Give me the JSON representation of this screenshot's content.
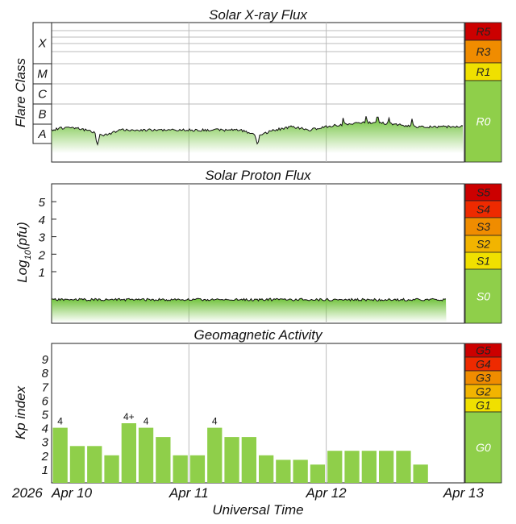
{
  "chart_data": [
    {
      "type": "area",
      "title": "Solar X-ray Flux",
      "ylabel": "Flare Class",
      "y_scale": "log",
      "class_ticks": [
        "A",
        "B",
        "C",
        "M",
        "X"
      ],
      "x": [
        "Apr 10 00:00",
        "Apr 10 03:00",
        "Apr 10 06:00",
        "Apr 10 09:00",
        "Apr 10 12:00",
        "Apr 10 15:00",
        "Apr 10 18:00",
        "Apr 10 21:00",
        "Apr 11 00:00",
        "Apr 11 03:00",
        "Apr 11 06:00",
        "Apr 11 09:00",
        "Apr 11 12:00",
        "Apr 11 15:00",
        "Apr 11 18:00",
        "Apr 11 21:00",
        "Apr 12 00:00",
        "Apr 12 03:00",
        "Apr 12 06:00",
        "Apr 12 09:00",
        "Apr 12 12:00",
        "Apr 12 15:00",
        "Apr 12 18:00",
        "Apr 12 21:00",
        "Apr 13 00:00"
      ],
      "values": [
        "B2",
        "B3",
        "B2",
        "B1",
        "B2",
        "B2",
        "B2",
        "B2",
        "B2",
        "B2",
        "B2",
        "B2",
        "B1",
        "B2",
        "B3",
        "B2",
        "B3",
        "B4",
        "B5",
        "B5",
        "B4",
        "B3",
        "B3",
        "B3",
        "B3"
      ],
      "peaks": [
        [
          "Apr 12 03:00",
          "B9"
        ],
        [
          "Apr 12 07:00",
          "C1.1"
        ],
        [
          "Apr 12 09:00",
          "C1.0"
        ],
        [
          "Apr 12 11:00",
          "B9"
        ],
        [
          "Apr 12 15:00",
          "B8"
        ]
      ],
      "dips": [
        [
          "Apr 10 08:00",
          "A3"
        ],
        [
          "Apr 11 12:00",
          "A3"
        ]
      ],
      "scale": {
        "labels": [
          "R5",
          "R3",
          "R1",
          "R0"
        ],
        "colors": [
          "#cc0000",
          "#f08c00",
          "#f0e000",
          "#8fcf4a"
        ]
      }
    },
    {
      "type": "area",
      "title": "Solar Proton Flux",
      "ylabel": "Log10(pfu)",
      "ylim": [
        -1.5,
        6
      ],
      "y_ticks": [
        1,
        2,
        3,
        4,
        5
      ],
      "x": [
        "Apr 10 00:00",
        "Apr 11 00:00",
        "Apr 12 00:00",
        "Apr 12 21:00"
      ],
      "values": [
        -0.6,
        -0.6,
        -0.6,
        -0.6
      ],
      "scale": {
        "labels": [
          "S5",
          "S4",
          "S3",
          "S2",
          "S1",
          "S0"
        ],
        "colors": [
          "#cc0000",
          "#ee2a00",
          "#f08c00",
          "#f2b400",
          "#f0e000",
          "#8fcf4a"
        ]
      }
    },
    {
      "type": "bar",
      "title": "Geomagnetic Activity",
      "ylabel": "Kp index",
      "ylim": [
        0,
        10
      ],
      "y_ticks": [
        1,
        2,
        3,
        4,
        5,
        6,
        7,
        8,
        9
      ],
      "categories": [
        "Apr 10 00-03",
        "Apr 10 03-06",
        "Apr 10 06-09",
        "Apr 10 09-12",
        "Apr 10 12-15",
        "Apr 10 15-18",
        "Apr 10 18-21",
        "Apr 10 21-24",
        "Apr 11 00-03",
        "Apr 11 03-06",
        "Apr 11 06-09",
        "Apr 11 09-12",
        "Apr 11 12-15",
        "Apr 11 15-18",
        "Apr 11 18-21",
        "Apr 11 21-24",
        "Apr 12 00-03",
        "Apr 12 03-06",
        "Apr 12 06-09",
        "Apr 12 09-12",
        "Apr 12 12-15",
        "Apr 12 15-18",
        "Apr 12 18-21",
        "Apr 12 21-24"
      ],
      "values": [
        4,
        2.67,
        2.67,
        2,
        4.33,
        4,
        3.33,
        2,
        2,
        4,
        3.33,
        3.33,
        2,
        1.67,
        1.67,
        1.33,
        2.33,
        2.33,
        2.33,
        2.33,
        2.33,
        1.33,
        null,
        null
      ],
      "value_labels": [
        "4",
        "",
        "",
        "",
        "4+",
        "4",
        "",
        "",
        "",
        "4",
        "",
        "",
        "",
        "",
        "",
        "",
        "",
        "",
        "",
        "",
        "",
        "",
        "",
        ""
      ],
      "scale": {
        "labels": [
          "G5",
          "G4",
          "G3",
          "G2",
          "G1",
          "G0"
        ],
        "colors": [
          "#cc0000",
          "#ee2a00",
          "#f08c00",
          "#f2b400",
          "#f0e000",
          "#8fcf4a"
        ]
      }
    }
  ],
  "x_axis": {
    "ticks": [
      "Apr 10",
      "Apr 11",
      "Apr 12",
      "Apr 13"
    ],
    "year": "2026",
    "label": "Universal Time"
  }
}
